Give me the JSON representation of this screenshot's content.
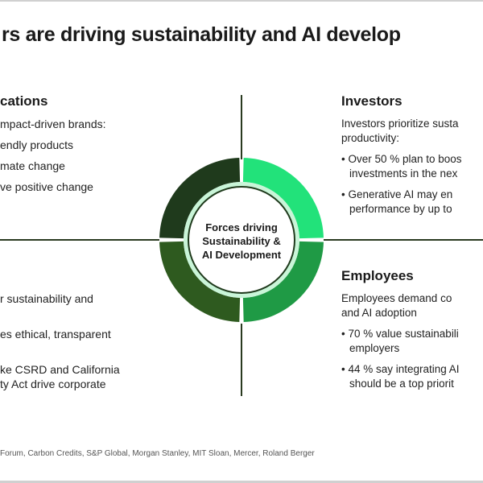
{
  "title": "rs are driving sustainability and AI develop",
  "center": {
    "line1": "Forces driving",
    "line2": "Sustainability &",
    "line3": "AI Development"
  },
  "top_left": {
    "heading": "cations",
    "lines": [
      "mpact-driven brands:",
      "endly products",
      "mate change",
      "ve positive change"
    ]
  },
  "bottom_left": {
    "lines": [
      "r sustainability and",
      "es ethical, transparent",
      "ke CSRD and California",
      "ty Act drive corporate"
    ]
  },
  "investors": {
    "heading": "Investors",
    "intro1": "Investors prioritize susta",
    "intro2": "productivity:",
    "b1a": "• Over 50 % plan to boos",
    "b1b": "investments in the nex",
    "b2a": "• Generative AI may en",
    "b2b": "performance by up to"
  },
  "employees": {
    "heading": "Employees",
    "intro1": "Employees demand co",
    "intro2": "and AI adoption",
    "b1a": "• 70 % value sustainabili",
    "b1b": "employers",
    "b2a": "• 44 % say integrating AI",
    "b2b": "should be a top priorit"
  },
  "footer": "Forum, Carbon Credits, S&P Global, Morgan Stanley, MIT Sloan, Mercer, Roland Berger",
  "colors": {
    "top_left": "#1f3a1c",
    "top_right": "#22e27a",
    "bottom_left": "#2e5a1f",
    "bottom_right": "#1f9a45",
    "inner_ring": "#c9f5d8",
    "lines": "#2a3a20"
  }
}
